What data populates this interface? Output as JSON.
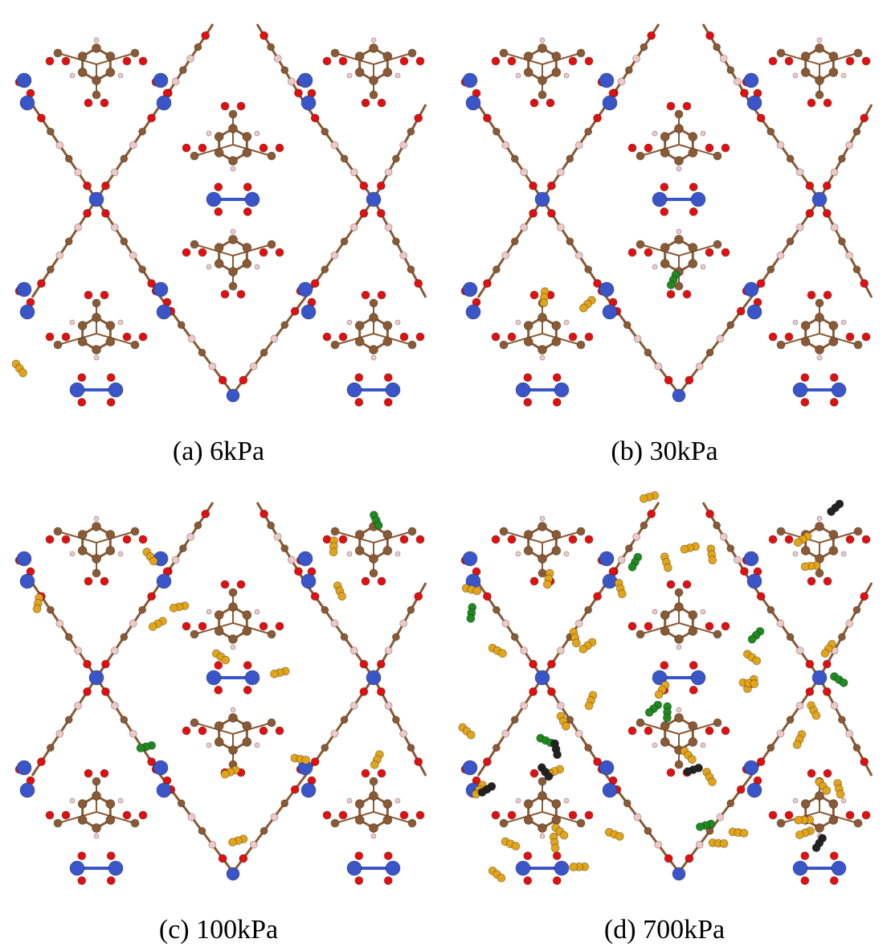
{
  "panels": [
    {
      "caption": "(a) 6kPa"
    },
    {
      "caption": "(b) 30kPa"
    },
    {
      "caption": "(c) 100kPa"
    },
    {
      "caption": "(d) 700kPa"
    }
  ]
}
